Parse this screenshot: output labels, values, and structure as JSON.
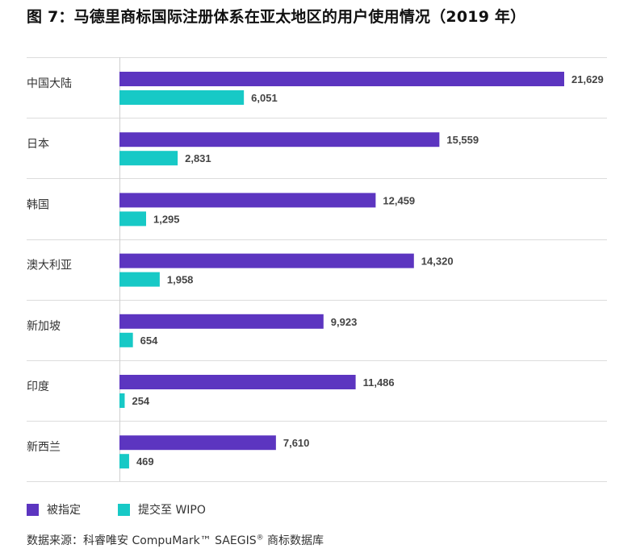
{
  "title": "图 7：马德里商标国际注册体系在亚太地区的用户使用情况（2019 年）",
  "chart_data": {
    "type": "bar",
    "orientation": "horizontal",
    "categories": [
      "中国大陆",
      "日本",
      "韩国",
      "澳大利亚",
      "新加坡",
      "印度",
      "新西兰"
    ],
    "series": [
      {
        "name": "被指定",
        "color": "#5c35c0",
        "values": [
          21629,
          15559,
          12459,
          14320,
          9923,
          11486,
          7610
        ]
      },
      {
        "name": "提交至 WIPO",
        "color": "#17c9c6",
        "values": [
          6051,
          2831,
          1295,
          1958,
          654,
          254,
          469
        ]
      }
    ],
    "value_labels": [
      [
        "21,629",
        "15,559",
        "12,459",
        "14,320",
        "9,923",
        "11,486",
        "7,610"
      ],
      [
        "6,051",
        "2,831",
        "1,295",
        "1,958",
        "654",
        "254",
        "469"
      ]
    ],
    "xlim": [
      0,
      21629
    ],
    "grid": false,
    "legend_position": "bottom-left"
  },
  "legend": [
    {
      "label": "被指定",
      "color": "#5c35c0"
    },
    {
      "label": "提交至 WIPO",
      "color": "#17c9c6"
    }
  ],
  "source": {
    "text": "数据来源：科睿唯安 CompuMark™ SAEGIS",
    "registered_mark": "®",
    "suffix": " 商标数据库"
  }
}
